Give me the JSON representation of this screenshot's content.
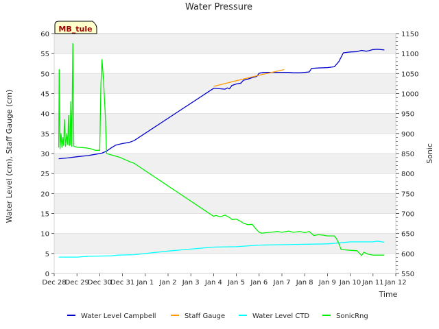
{
  "chart_data": {
    "type": "line",
    "title": "Water Pressure",
    "badge": "MB_tule",
    "xlabel": "Time",
    "ylabel_left": "Water Level (cm), Staff Gauge (cm)",
    "ylabel_right": "Sonic",
    "x_ticks": [
      "Dec 28",
      "Dec 29",
      "Dec 30",
      "Dec 31",
      "Jan 1",
      "Jan 2",
      "Jan 3",
      "Jan 4",
      "Jan 5",
      "Jan 6",
      "Jan 7",
      "Jan 8",
      "Jan 9",
      "Jan 10",
      "Jan 11",
      "Jan 12"
    ],
    "x_range": [
      0,
      15
    ],
    "ylim_left": [
      0,
      60
    ],
    "ylim_right": [
      550,
      1150
    ],
    "y_ticks_left": [
      0,
      5,
      10,
      15,
      20,
      25,
      30,
      35,
      40,
      45,
      50,
      55,
      60
    ],
    "y_ticks_right": [
      550,
      600,
      650,
      700,
      750,
      800,
      850,
      900,
      950,
      1000,
      1050,
      1100,
      1150
    ],
    "grid": true,
    "legend_position": "bottom",
    "series": [
      {
        "name": "Water Level Campbell",
        "axis": "left",
        "color": "#0000cc",
        "points": [
          [
            0.2,
            28.7
          ],
          [
            0.6,
            28.9
          ],
          [
            1.0,
            29.2
          ],
          [
            1.5,
            29.5
          ],
          [
            1.8,
            29.8
          ],
          [
            2.1,
            30.1
          ],
          [
            2.3,
            30.6
          ],
          [
            2.5,
            31.4
          ],
          [
            2.7,
            32.1
          ],
          [
            3.0,
            32.5
          ],
          [
            3.2,
            32.7
          ],
          [
            3.3,
            32.8
          ],
          [
            3.5,
            33.2
          ],
          [
            7.0,
            46.3
          ],
          [
            7.3,
            46.2
          ],
          [
            7.5,
            46.1
          ],
          [
            7.6,
            46.4
          ],
          [
            7.7,
            46.2
          ],
          [
            7.8,
            47.0
          ],
          [
            8.0,
            47.4
          ],
          [
            8.2,
            47.6
          ],
          [
            8.3,
            48.3
          ],
          [
            8.5,
            48.6
          ],
          [
            8.7,
            49.0
          ],
          [
            8.9,
            49.3
          ],
          [
            9.0,
            50.1
          ],
          [
            9.2,
            50.3
          ],
          [
            9.5,
            50.3
          ],
          [
            9.8,
            50.3
          ],
          [
            10.0,
            50.3
          ],
          [
            10.3,
            50.3
          ],
          [
            10.5,
            50.2
          ],
          [
            10.8,
            50.2
          ],
          [
            11.0,
            50.3
          ],
          [
            11.2,
            50.4
          ],
          [
            11.3,
            51.3
          ],
          [
            11.6,
            51.4
          ],
          [
            12.0,
            51.5
          ],
          [
            12.3,
            51.7
          ],
          [
            12.5,
            53.0
          ],
          [
            12.7,
            55.2
          ],
          [
            13.0,
            55.4
          ],
          [
            13.3,
            55.5
          ],
          [
            13.5,
            55.8
          ],
          [
            13.7,
            55.6
          ],
          [
            13.8,
            55.7
          ],
          [
            14.0,
            56.0
          ],
          [
            14.2,
            56.1
          ],
          [
            14.5,
            55.9
          ]
        ]
      },
      {
        "name": "Staff Gauge",
        "axis": "left",
        "color": "#ff9900",
        "points": [
          [
            7.0,
            46.8
          ],
          [
            8.0,
            48.2
          ],
          [
            9.0,
            49.6
          ],
          [
            10.1,
            51.0
          ]
        ]
      },
      {
        "name": "Water Level CTD",
        "axis": "left",
        "color": "#00ffff",
        "points": [
          [
            0.2,
            4.1
          ],
          [
            1.0,
            4.1
          ],
          [
            1.5,
            4.3
          ],
          [
            2.5,
            4.4
          ],
          [
            2.8,
            4.6
          ],
          [
            3.5,
            4.7
          ],
          [
            5.0,
            5.6
          ],
          [
            6.0,
            6.1
          ],
          [
            7.0,
            6.6
          ],
          [
            8.0,
            6.7
          ],
          [
            9.0,
            7.1
          ],
          [
            10.0,
            7.2
          ],
          [
            11.0,
            7.3
          ],
          [
            12.0,
            7.4
          ],
          [
            13.0,
            7.9
          ],
          [
            14.0,
            7.9
          ],
          [
            14.2,
            8.1
          ],
          [
            14.5,
            7.8
          ]
        ]
      },
      {
        "name": "SonicRng",
        "axis": "right",
        "color": "#00ee00",
        "points": [
          [
            0.2,
            865
          ],
          [
            0.22,
            1060
          ],
          [
            0.26,
            862
          ],
          [
            0.3,
            900
          ],
          [
            0.34,
            866
          ],
          [
            0.38,
            890
          ],
          [
            0.42,
            870
          ],
          [
            0.45,
            935
          ],
          [
            0.5,
            868
          ],
          [
            0.55,
            900
          ],
          [
            0.6,
            872
          ],
          [
            0.63,
            945
          ],
          [
            0.67,
            870
          ],
          [
            0.7,
            872
          ],
          [
            0.73,
            980
          ],
          [
            0.77,
            868
          ],
          [
            0.82,
            1125
          ],
          [
            0.86,
            868
          ],
          [
            1.0,
            866
          ],
          [
            1.4,
            864
          ],
          [
            1.6,
            862
          ],
          [
            1.8,
            858
          ],
          [
            2.0,
            858
          ],
          [
            2.05,
            1020
          ],
          [
            2.1,
            1085
          ],
          [
            2.17,
            1030
          ],
          [
            2.25,
            940
          ],
          [
            2.3,
            850
          ],
          [
            2.6,
            845
          ],
          [
            2.9,
            840
          ],
          [
            3.3,
            830
          ],
          [
            3.5,
            826
          ],
          [
            7.0,
            693
          ],
          [
            7.1,
            695
          ],
          [
            7.3,
            692
          ],
          [
            7.5,
            696
          ],
          [
            7.7,
            690
          ],
          [
            7.8,
            685
          ],
          [
            8.0,
            686
          ],
          [
            8.2,
            680
          ],
          [
            8.3,
            676
          ],
          [
            8.5,
            672
          ],
          [
            8.7,
            673
          ],
          [
            8.8,
            665
          ],
          [
            9.0,
            653
          ],
          [
            9.1,
            651
          ],
          [
            9.3,
            652
          ],
          [
            9.5,
            653
          ],
          [
            9.8,
            655
          ],
          [
            10.0,
            653
          ],
          [
            10.3,
            656
          ],
          [
            10.5,
            653
          ],
          [
            10.8,
            655
          ],
          [
            11.0,
            652
          ],
          [
            11.2,
            655
          ],
          [
            11.4,
            645
          ],
          [
            11.6,
            647
          ],
          [
            11.8,
            646
          ],
          [
            12.0,
            644
          ],
          [
            12.3,
            644
          ],
          [
            12.4,
            637
          ],
          [
            12.5,
            625
          ],
          [
            12.6,
            610
          ],
          [
            12.8,
            609
          ],
          [
            13.0,
            608
          ],
          [
            13.3,
            607
          ],
          [
            13.5,
            595
          ],
          [
            13.6,
            603
          ],
          [
            13.8,
            598
          ],
          [
            14.0,
            596
          ],
          [
            14.5,
            596
          ]
        ]
      }
    ]
  }
}
